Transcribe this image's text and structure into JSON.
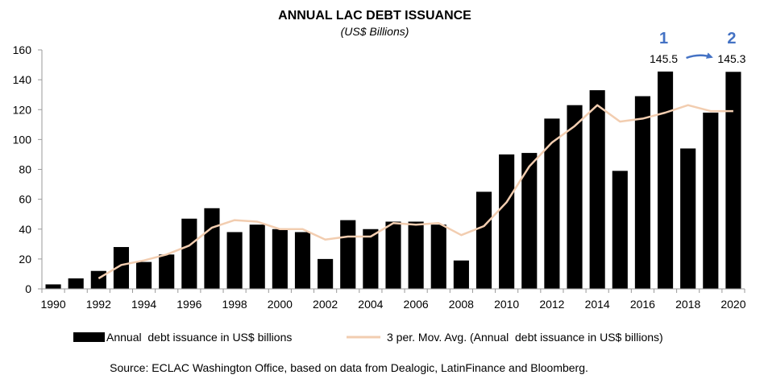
{
  "chart_data": {
    "type": "bar",
    "title": "ANNUAL LAC DEBT ISSUANCE",
    "subtitle": "(US$ Billions)",
    "xlabel": "",
    "ylabel": "",
    "ylim": [
      0,
      160
    ],
    "yticks": [
      "0",
      "20",
      "40",
      "60",
      "80",
      "100",
      "120",
      "140",
      "160"
    ],
    "x": [
      1990,
      1991,
      1992,
      1993,
      1994,
      1995,
      1996,
      1997,
      1998,
      1999,
      2000,
      2001,
      2002,
      2003,
      2004,
      2005,
      2006,
      2007,
      2008,
      2009,
      2010,
      2011,
      2012,
      2013,
      2014,
      2015,
      2016,
      2017,
      2018,
      2019,
      2020
    ],
    "xtick_labels": [
      "1990",
      "1992",
      "1994",
      "1996",
      "1998",
      "2000",
      "2002",
      "2004",
      "2006",
      "2008",
      "2010",
      "2012",
      "2014",
      "2016",
      "2018",
      "2020"
    ],
    "series": [
      {
        "name": "Annual  debt issuance in US$ billions",
        "kind": "bar",
        "color": "#000000",
        "values": [
          3,
          7,
          12,
          28,
          18,
          23,
          47,
          54,
          38,
          43,
          40,
          38,
          20,
          46,
          40,
          45,
          45,
          43,
          19,
          65,
          90,
          91,
          114,
          123,
          133,
          79,
          129,
          145.5,
          94,
          118,
          145.3
        ]
      },
      {
        "name": "3 per. Mov. Avg. (Annual  debt issuance in US$ billions)",
        "kind": "line",
        "color": "#f2cdb0",
        "values": [
          null,
          null,
          7,
          16,
          19,
          23,
          29,
          41,
          46,
          45,
          40,
          40,
          33,
          35,
          35,
          44,
          43,
          44,
          36,
          42,
          58,
          82,
          98,
          109,
          123,
          112,
          114,
          118,
          123,
          119,
          119
        ]
      }
    ],
    "annotations": [
      {
        "label": "1",
        "value_text": "145.5",
        "year": 2017
      },
      {
        "label": "2",
        "value_text": "145.3",
        "year": 2020
      }
    ],
    "annotation_color": "#4472c4",
    "legend_position": "bottom",
    "source": "Source: ECLAC Washington Office, based on data from Dealogic, LatinFinance and Bloomberg."
  }
}
